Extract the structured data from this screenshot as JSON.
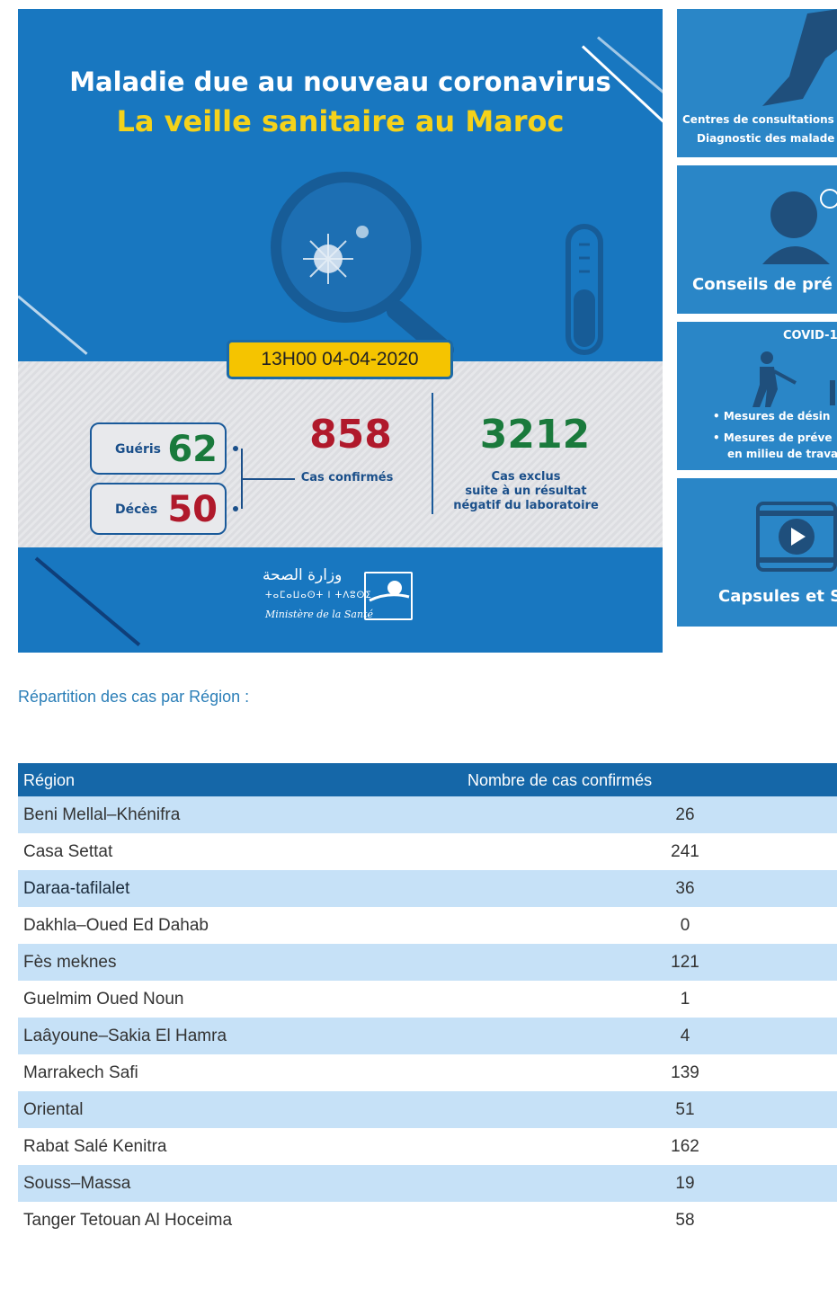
{
  "banner": {
    "title_line1": "Maladie due au nouveau coronavirus",
    "title_line2": "La veille sanitaire au Maroc",
    "date": "13H00  04-04-2020",
    "gueris_label": "Guéris",
    "gueris_value": "62",
    "deces_label": "Décès",
    "deces_value": "50",
    "confirmes_value": "858",
    "confirmes_label": "Cas confirmés",
    "exclus_value": "3212",
    "exclus_label_1": "Cas exclus",
    "exclus_label_2": "suite à un résultat",
    "exclus_label_3": "négatif du laboratoire",
    "logo_arabic": "وزارة الصحة",
    "logo_tifinagh": "ⵜⴰⵎⴰⵡⴰⵙⵜ ⵏ ⵜⴷⵓⵙⵉ",
    "logo_french": "Ministère de la Santé",
    "colors": {
      "blue": "#1877c0",
      "yellow": "#f5d21a",
      "green": "#1a7a3c",
      "red": "#b0192b"
    }
  },
  "side_cards": {
    "card1_line1": "Centres de consultations",
    "card1_line2": "Diagnostic des malade",
    "card2_title": "Conseils de pré",
    "card3_title": "COVID-1",
    "card3_item1": "Mesures de désin",
    "card3_item2a": "Mesures de préve",
    "card3_item2b": "en milieu de trava",
    "card4_title": "Capsules et S"
  },
  "section": {
    "title": "Répartition des cas par Région :"
  },
  "table": {
    "headers": [
      "Région",
      "Nombre de cas confirmés"
    ],
    "rows": [
      {
        "region": "Beni Mellal–Khénifra",
        "cases": "26"
      },
      {
        "region": "Casa Settat",
        "cases": "241"
      },
      {
        "region": "Daraa-tafilalet",
        "cases": "36"
      },
      {
        "region": "Dakhla–Oued Ed Dahab",
        "cases": "0"
      },
      {
        "region": "Fès meknes",
        "cases": "121"
      },
      {
        "region": "Guelmim Oued Noun",
        "cases": "1"
      },
      {
        "region": "Laâyoune–Sakia El Hamra",
        "cases": "4"
      },
      {
        "region": "Marrakech Safi",
        "cases": "139"
      },
      {
        "region": "Oriental",
        "cases": "51"
      },
      {
        "region": "Rabat Salé Kenitra",
        "cases": "162"
      },
      {
        "region": "Souss–Massa",
        "cases": "19"
      },
      {
        "region": "Tanger Tetouan Al Hoceima",
        "cases": "58"
      }
    ]
  }
}
